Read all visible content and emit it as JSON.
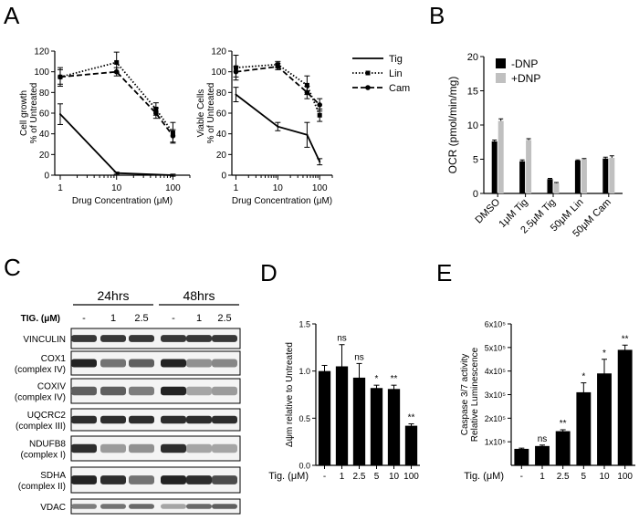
{
  "panels": {
    "A": "A",
    "B": "B",
    "C": "C",
    "D": "D",
    "E": "E"
  },
  "colors": {
    "black": "#000000",
    "grey": "#c0c0c0",
    "blot_band": "#3a3a3a"
  },
  "chart_data": [
    {
      "id": "A1",
      "type": "line",
      "xlabel": "Drug Concentration (μM)",
      "ylabel": [
        "Cell growth",
        "% of Untreated"
      ],
      "xscale": "log",
      "xlim": [
        0.8,
        200
      ],
      "ylim": [
        0,
        120
      ],
      "yticks": [
        0,
        20,
        40,
        60,
        80,
        100,
        120
      ],
      "xticks": [
        1,
        10,
        100
      ],
      "xtick_labels": [
        "1",
        "10",
        "100"
      ],
      "series": [
        {
          "name": "Tig",
          "style": "solid",
          "marker": "none",
          "x": [
            1,
            10,
            100
          ],
          "y": [
            59,
            2,
            0
          ],
          "err": [
            10,
            1,
            1
          ]
        },
        {
          "name": "Lin",
          "style": "dotted",
          "marker": "square",
          "x": [
            1,
            10,
            50,
            100
          ],
          "y": [
            95,
            109,
            64,
            41
          ],
          "err": [
            9,
            10,
            6,
            10
          ]
        },
        {
          "name": "Cam",
          "style": "dashed",
          "marker": "circle",
          "x": [
            1,
            10,
            50,
            100
          ],
          "y": [
            95,
            100,
            60,
            38
          ],
          "err": [
            7,
            4,
            5,
            6
          ]
        }
      ]
    },
    {
      "id": "A2",
      "type": "line",
      "xlabel": "Drug Concentration (μM)",
      "ylabel": [
        "Viable Cells",
        "% of Untreated"
      ],
      "xscale": "log",
      "xlim": [
        0.8,
        200
      ],
      "ylim": [
        0,
        120
      ],
      "yticks": [
        0,
        20,
        40,
        60,
        80,
        100,
        120
      ],
      "xticks": [
        1,
        10,
        100
      ],
      "xtick_labels": [
        "1",
        "10",
        "100"
      ],
      "legend": {
        "position": "right",
        "entries": [
          "Tig",
          "Lin",
          "Cam"
        ]
      },
      "series": [
        {
          "name": "Tig",
          "style": "solid",
          "marker": "none",
          "x": [
            1,
            10,
            50,
            100
          ],
          "y": [
            78,
            47,
            39,
            13
          ],
          "err": [
            7,
            4,
            12,
            3
          ]
        },
        {
          "name": "Lin",
          "style": "dotted",
          "marker": "square",
          "x": [
            1,
            10,
            50,
            100
          ],
          "y": [
            104,
            107,
            87,
            58
          ],
          "err": [
            12,
            3,
            9,
            6
          ]
        },
        {
          "name": "Cam",
          "style": "dashed",
          "marker": "circle",
          "x": [
            1,
            10,
            50,
            100
          ],
          "y": [
            100,
            105,
            80,
            68
          ],
          "err": [
            5,
            3,
            6,
            6
          ]
        }
      ]
    },
    {
      "id": "B",
      "type": "bar",
      "ylabel": "OCR (pmol/min/mg)",
      "ylim": [
        0,
        20
      ],
      "yticks": [
        0,
        5,
        10,
        15,
        20
      ],
      "categories": [
        "DMSO",
        "1μM Tig",
        "2.5μM Tig",
        "50μM Lin",
        "50μM Cam"
      ],
      "legend": {
        "position": "top-right",
        "entries": [
          "-DNP",
          "+DNP"
        ]
      },
      "series": [
        {
          "name": "-DNP",
          "color": "#000000",
          "values": [
            7.6,
            4.7,
            2.1,
            4.8,
            5.1
          ],
          "err": [
            0.2,
            0.2,
            0.1,
            0.1,
            0.2
          ]
        },
        {
          "name": "+DNP",
          "color": "#c0c0c0",
          "values": [
            10.6,
            7.8,
            1.5,
            5.0,
            5.2
          ],
          "err": [
            0.3,
            0.2,
            0.1,
            0.1,
            0.3
          ]
        }
      ]
    },
    {
      "id": "D",
      "type": "bar",
      "ylabel": "Δψm relative to Untreated",
      "ylim": [
        0,
        1.5
      ],
      "yticks": [
        0.0,
        0.5,
        1.0,
        1.5
      ],
      "ytick_labels": [
        "0.0",
        "0.5",
        "1.0",
        "1.5"
      ],
      "x_axis_title": "Tig. (μM)",
      "categories": [
        "-",
        "1",
        "2.5",
        "5",
        "10",
        "100"
      ],
      "values": [
        1.0,
        1.05,
        0.93,
        0.82,
        0.81,
        0.42
      ],
      "err": [
        0.06,
        0.23,
        0.15,
        0.03,
        0.04,
        0.02
      ],
      "annotations": [
        "",
        "ns",
        "ns",
        "*",
        "**",
        "**"
      ]
    },
    {
      "id": "E",
      "type": "bar",
      "ylabel": [
        "Caspase 3/7 activity",
        "Relative Luminescence"
      ],
      "ylim": [
        0,
        600000
      ],
      "yticks": [
        100000,
        200000,
        300000,
        400000,
        500000,
        600000
      ],
      "ytick_labels": [
        "1x10⁵",
        "2x10⁵",
        "3x10⁵",
        "4x10⁵",
        "5x10⁵",
        "6x10⁵"
      ],
      "x_axis_title": "Tig. (μM)",
      "categories": [
        "-",
        "1",
        "2.5",
        "5",
        "10",
        "100"
      ],
      "values": [
        70000,
        82000,
        145000,
        310000,
        390000,
        490000
      ],
      "err": [
        3000,
        4000,
        6000,
        40000,
        60000,
        20000
      ],
      "annotations": [
        "",
        "ns",
        "**",
        "*",
        "*",
        "**"
      ]
    }
  ],
  "blot": {
    "timepoints": [
      "24hrs",
      "48hrs"
    ],
    "row_label": "TIG. (μM)",
    "lanes": [
      "-",
      "1",
      "2.5",
      "-",
      "1",
      "2.5"
    ],
    "proteins": [
      {
        "name": "VINCULIN",
        "sub": "",
        "intensity": [
          0.9,
          0.9,
          0.9,
          0.9,
          0.9,
          0.9
        ]
      },
      {
        "name": "COX1",
        "sub": "(complex IV)",
        "intensity": [
          1.0,
          0.6,
          0.7,
          1.0,
          0.45,
          0.5
        ]
      },
      {
        "name": "COXIV",
        "sub": "(complex IV)",
        "intensity": [
          0.7,
          0.7,
          0.55,
          1.0,
          0.35,
          0.4
        ]
      },
      {
        "name": "UQCRC2",
        "sub": "(complex III)",
        "intensity": [
          0.95,
          0.95,
          0.95,
          0.95,
          0.95,
          0.95
        ]
      },
      {
        "name": "NDUFB8",
        "sub": "(complex I)",
        "intensity": [
          0.95,
          0.4,
          0.45,
          0.95,
          0.35,
          0.35
        ]
      },
      {
        "name": "SDHA",
        "sub": "(complex II)",
        "intensity": [
          1.0,
          0.95,
          0.6,
          1.0,
          0.95,
          0.8
        ]
      },
      {
        "name": "VDAC",
        "sub": "",
        "intensity": [
          0.55,
          0.6,
          0.65,
          0.35,
          0.65,
          0.7
        ]
      }
    ]
  }
}
